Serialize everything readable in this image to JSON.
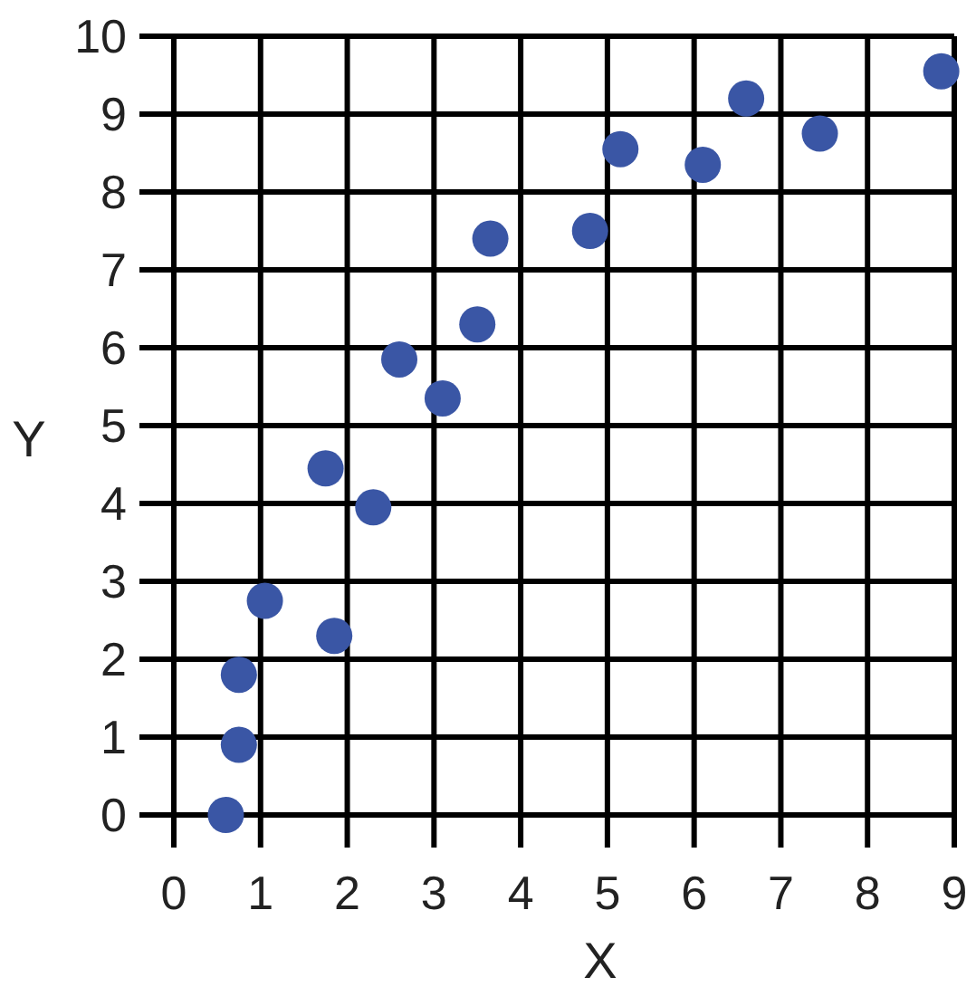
{
  "chart_data": {
    "type": "scatter",
    "xlabel": "X",
    "ylabel": "Y",
    "x": [
      0.6,
      0.75,
      0.75,
      1.05,
      1.85,
      1.75,
      2.3,
      2.6,
      3.1,
      3.5,
      3.65,
      4.8,
      5.15,
      6.1,
      6.6,
      7.45,
      8.85
    ],
    "series": [
      {
        "color": "#3a56a5",
        "values": [
          0,
          0.9,
          1.8,
          2.75,
          2.3,
          4.45,
          3.95,
          5.85,
          5.35,
          6.3,
          7.4,
          7.5,
          8.55,
          8.35,
          9.2,
          8.75,
          9.55
        ]
      }
    ],
    "xlim": [
      0,
      9
    ],
    "ylim": [
      0,
      10
    ],
    "xticks": [
      0,
      1,
      2,
      3,
      4,
      5,
      6,
      7,
      8,
      9
    ],
    "yticks": [
      0,
      1,
      2,
      3,
      4,
      5,
      6,
      7,
      8,
      9,
      10
    ],
    "grid": true,
    "marker": "circle"
  }
}
